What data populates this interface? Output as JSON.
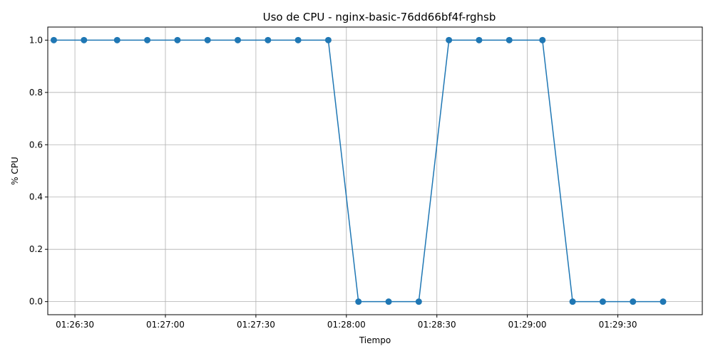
{
  "chart_data": {
    "type": "line",
    "title": "Uso de CPU - nginx-basic-76dd66bf4f-rghsb",
    "xlabel": "Tiempo",
    "ylabel": "% CPU",
    "x_tick_labels": [
      "01:26:30",
      "01:27:00",
      "01:27:30",
      "01:28:00",
      "01:28:30",
      "01:29:00",
      "01:29:30"
    ],
    "y_tick_labels": [
      "0.0",
      "0.2",
      "0.4",
      "0.6",
      "0.8",
      "1.0"
    ],
    "xlim": [
      "01:26:21",
      "01:29:58"
    ],
    "ylim": [
      -0.05,
      1.05
    ],
    "grid": true,
    "marker": "circle",
    "color": "#1f77b4",
    "series": [
      {
        "x": [
          "01:26:23",
          "01:26:33",
          "01:26:44",
          "01:26:54",
          "01:27:04",
          "01:27:14",
          "01:27:24",
          "01:27:34",
          "01:27:44",
          "01:27:54",
          "01:28:04",
          "01:28:14",
          "01:28:24",
          "01:28:34",
          "01:28:44",
          "01:28:54",
          "01:29:05",
          "01:29:15",
          "01:29:25",
          "01:29:35",
          "01:29:45"
        ],
        "y": [
          1.0,
          1.0,
          1.0,
          1.0,
          1.0,
          1.0,
          1.0,
          1.0,
          1.0,
          1.0,
          0.0,
          0.0,
          0.0,
          1.0,
          1.0,
          1.0,
          1.0,
          0.0,
          0.0,
          0.0,
          0.0
        ]
      }
    ]
  }
}
